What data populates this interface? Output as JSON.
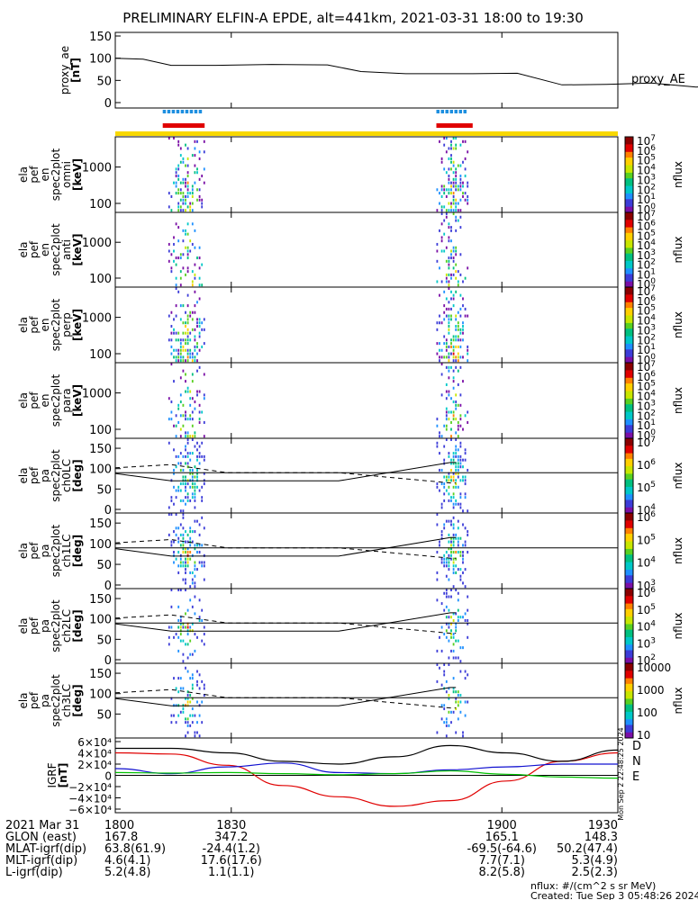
{
  "title": "PRELIMINARY ELFIN-A EPDE, alt=441km, 2021-03-31 18:00 to 19:30",
  "colors": {
    "red": "#e00000",
    "blue": "#1e8fe0",
    "yellow": "#f8d800",
    "igrf_d": "#e00000",
    "igrf_n": "#1010d0",
    "igrf_e": "#00c000",
    "colormap": [
      "#ffffff",
      "#7a0fa6",
      "#3c3cd8",
      "#1e90ff",
      "#00c8c8",
      "#00c080",
      "#58d020",
      "#c8e600",
      "#ffd000",
      "#ff8000",
      "#e00000",
      "#8b0000"
    ]
  },
  "proxy_ae": {
    "ylabel": "proxy_ae\n[nT]",
    "ticks": [
      "150",
      "100",
      "50",
      "0"
    ],
    "legend": "proxy_AE"
  },
  "bars": {
    "blue_intervals": [
      [
        1808.5,
        1815.5
      ],
      [
        1857.5,
        1863
      ]
    ],
    "red_intervals": [
      [
        1808.5,
        1816
      ],
      [
        1857.5,
        1864
      ]
    ],
    "yellow_interval": [
      1800,
      1930
    ]
  },
  "spectro_panels": [
    {
      "ylabel": [
        "ela",
        "pef",
        "en",
        "spec2plot",
        "omni",
        "[keV]"
      ],
      "yticks": [
        "1000",
        "100"
      ],
      "cb_ticks": [
        "10",
        "10",
        "10",
        "10",
        "10",
        "10",
        "10",
        "10"
      ],
      "cb_exps": [
        "7",
        "6",
        "5",
        "4",
        "3",
        "2",
        "1",
        "0"
      ],
      "cb_label": "nflux"
    },
    {
      "ylabel": [
        "ela",
        "pef",
        "en",
        "spec2plot",
        "anti",
        "[keV]"
      ],
      "yticks": [
        "1000",
        "100"
      ],
      "cb_ticks": [
        "10",
        "10",
        "10",
        "10",
        "10",
        "10",
        "10",
        "10"
      ],
      "cb_exps": [
        "7",
        "6",
        "5",
        "4",
        "3",
        "2",
        "1",
        "0"
      ],
      "cb_label": "nflux"
    },
    {
      "ylabel": [
        "ela",
        "pef",
        "en",
        "spec2plot",
        "perp",
        "[keV]"
      ],
      "yticks": [
        "1000",
        "100"
      ],
      "cb_ticks": [
        "10",
        "10",
        "10",
        "10",
        "10",
        "10",
        "10",
        "10"
      ],
      "cb_exps": [
        "7",
        "6",
        "5",
        "4",
        "3",
        "2",
        "1",
        "0"
      ],
      "cb_label": "nflux"
    },
    {
      "ylabel": [
        "ela",
        "pef",
        "en",
        "spec2plot",
        "para",
        "[keV]"
      ],
      "yticks": [
        "1000",
        "100"
      ],
      "cb_ticks": [
        "10",
        "10",
        "10",
        "10",
        "10",
        "10",
        "10",
        "10"
      ],
      "cb_exps": [
        "7",
        "6",
        "5",
        "4",
        "3",
        "2",
        "1",
        "0"
      ],
      "cb_label": "nflux"
    }
  ],
  "pa_panels": [
    {
      "ylabel": [
        "ela",
        "pef",
        "pa",
        "spec2plot",
        "ch0LC",
        "[deg]"
      ],
      "yticks": [
        "150",
        "100",
        "50",
        "0"
      ],
      "cb_ticks": [
        "10",
        "10",
        "10",
        "10"
      ],
      "cb_exps": [
        "7",
        "6",
        "5",
        "4"
      ],
      "cb_label": "nflux"
    },
    {
      "ylabel": [
        "ela",
        "pef",
        "pa",
        "spec2plot",
        "ch1LC",
        "[deg]"
      ],
      "yticks": [
        "150",
        "100",
        "50",
        "0"
      ],
      "cb_ticks": [
        "10",
        "10",
        "10",
        "10"
      ],
      "cb_exps": [
        "6",
        "5",
        "4",
        "3"
      ],
      "cb_label": "nflux"
    },
    {
      "ylabel": [
        "ela",
        "pef",
        "pa",
        "spec2plot",
        "ch2LC",
        "[deg]"
      ],
      "yticks": [
        "150",
        "100",
        "50",
        "0"
      ],
      "cb_ticks": [
        "10",
        "10",
        "10",
        "10",
        "10"
      ],
      "cb_exps": [
        "6",
        "5",
        "4",
        "3",
        "2"
      ],
      "cb_label": "nflux"
    },
    {
      "ylabel": [
        "ela",
        "pef",
        "pa",
        "spec2plot",
        "ch3LC",
        "[deg]"
      ],
      "yticks": [
        "150",
        "100",
        "50"
      ],
      "cb_ticks": [
        "10000",
        "1000",
        "100",
        "10"
      ],
      "cb_exps": [
        "",
        "",
        "",
        ""
      ],
      "cb_label": "nflux"
    }
  ],
  "igrf": {
    "ylabel": [
      "IGRF",
      "[nT]"
    ],
    "ticks": [
      "6×10⁴",
      "4×10⁴",
      "2×10⁴",
      "0",
      "−2×10⁴",
      "−4×10⁴",
      "−6×10⁴"
    ],
    "legend": [
      "D",
      "N",
      "E"
    ],
    "side_note": "Mon Sep  2 22:48:25 2024"
  },
  "xaxis": {
    "ticks": [
      "1800",
      "1830",
      "1900",
      "1930"
    ],
    "tick_values": [
      1800,
      1830,
      1900,
      1930
    ],
    "range": [
      1800,
      1930
    ]
  },
  "ephemeris": {
    "labels": [
      "2021 Mar 31",
      "GLON (east)",
      "MLAT-igrf(dip)",
      "MLT-igrf(dip)",
      "L-igrf(dip)"
    ],
    "columns": [
      [
        "1800",
        "167.8",
        "63.8(61.9)",
        "4.6(4.1)",
        "5.2(4.8)"
      ],
      [
        "1830",
        "347.2",
        "-24.4(1.2)",
        "17.6(17.6)",
        "1.1(1.1)"
      ],
      [
        "1900",
        "165.1",
        "-69.5(-64.6)",
        "7.7(7.1)",
        "8.2(5.8)"
      ],
      [
        "1930",
        "148.3",
        "50.2(47.4)",
        "5.3(4.9)",
        "2.5(2.3)"
      ]
    ]
  },
  "footer": {
    "units": "nflux: #/(cm^2 s sr MeV)",
    "created": "Created: Tue Sep  3 05:48:26 2024"
  },
  "chart_data": {
    "type": "line",
    "title": "PRELIMINARY ELFIN-A EPDE, alt=441km, 2021-03-31 18:00 to 19:30",
    "xlabel": "",
    "x_ticks": [
      "1800",
      "1830",
      "1900",
      "1930"
    ],
    "series": [
      {
        "name": "proxy_AE",
        "x_min": [
          0,
          5,
          10,
          18,
          28,
          38,
          44,
          52,
          64,
          72,
          80,
          88,
          96,
          104,
          108,
          118,
          130
        ],
        "values": [
          100,
          98,
          84,
          84,
          86,
          85,
          70,
          65,
          65,
          66,
          40,
          41,
          44,
          35,
          36,
          37,
          48
        ]
      },
      {
        "name": "D",
        "x_min": [
          0,
          10,
          20,
          30,
          40,
          50,
          60,
          70,
          80,
          90
        ],
        "values": [
          40000,
          38000,
          18000,
          -18000,
          -38000,
          -55000,
          -45000,
          -10000,
          25000,
          40000
        ]
      },
      {
        "name": "N",
        "x_min": [
          0,
          10,
          20,
          30,
          40,
          50,
          60,
          70,
          80,
          90
        ],
        "values": [
          12000,
          3000,
          15000,
          22000,
          5000,
          3000,
          10000,
          15000,
          20000,
          20000
        ]
      },
      {
        "name": "E",
        "x_min": [
          0,
          10,
          20,
          30,
          40,
          50,
          60,
          70,
          80,
          90
        ],
        "values": [
          5000,
          4000,
          5000,
          3000,
          1000,
          3000,
          8000,
          2000,
          -3000,
          -5000
        ]
      }
    ],
    "ylim_proxy_ae": [
      0,
      150
    ],
    "ylim_igrf": [
      -60000,
      60000
    ]
  }
}
